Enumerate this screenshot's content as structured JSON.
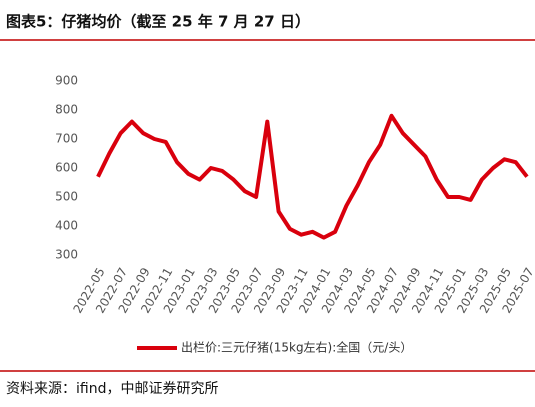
{
  "chart_data": {
    "type": "line",
    "title": "图表5：仔猪均价（截至 25 年 7 月 27 日）",
    "source": "资料来源：ifind，中邮证券研究所",
    "categories": [
      "2022-05",
      null,
      "2022-07",
      null,
      "2022-09",
      null,
      "2022-11",
      null,
      "2023-01",
      null,
      "2023-03",
      null,
      "2023-05",
      null,
      "2023-07",
      null,
      "2023-09",
      null,
      "2023-11",
      null,
      "2024-01",
      null,
      "2024-03",
      null,
      "2024-05",
      null,
      "2024-07",
      null,
      "2024-09",
      null,
      "2024-11",
      null,
      "2025-01",
      null,
      "2025-03",
      null,
      "2025-05",
      null,
      "2025-07"
    ],
    "series": [
      {
        "name": "出栏价:三元仔猪(15kg左右):全国（元/头）",
        "color": "#d9000d",
        "values": [
          570,
          650,
          720,
          760,
          720,
          700,
          690,
          620,
          580,
          560,
          600,
          590,
          560,
          520,
          500,
          760,
          450,
          390,
          370,
          380,
          360,
          380,
          470,
          540,
          620,
          680,
          780,
          720,
          680,
          640,
          560,
          500,
          500,
          490,
          560,
          600,
          630,
          620,
          570
        ]
      }
    ],
    "ylim": [
      300,
      900
    ],
    "yticks": [
      300,
      400,
      500,
      600,
      700,
      800,
      900
    ],
    "grid": false
  }
}
